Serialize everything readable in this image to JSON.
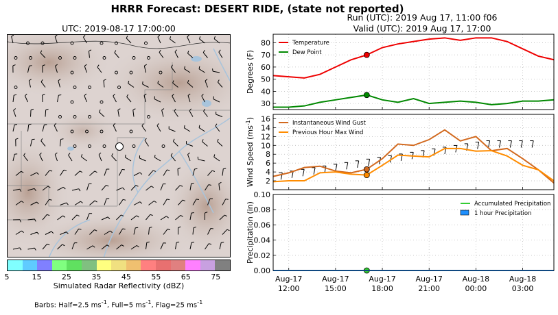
{
  "title": "HRRR Forecast: DESERT RIDE, (state not reported)",
  "run_line": "Run (UTC): 2019 Aug 17, 11:00 f06",
  "valid_line": "Valid (UTC): 2019 Aug 17, 17:00",
  "map": {
    "title": "UTC: 2019-08-17 17:00:00",
    "colorbar_label": "Simulated Radar Reflectivity (dBZ)",
    "colorbar_ticks": [
      "5",
      "15",
      "25",
      "35",
      "45",
      "55",
      "65",
      "75"
    ],
    "colorbar_colors": [
      "#80ffff",
      "#5fcbff",
      "#8080ff",
      "#80ff80",
      "#60e060",
      "#80c080",
      "#ffff80",
      "#f0e080",
      "#f0c070",
      "#ff8080",
      "#e87070",
      "#e08080",
      "#ff80ff",
      "#c8a0e0",
      "#808080"
    ],
    "barbs_note": "Barbs: Half=2.5 ms",
    "barbs_unit_sup": "-1",
    "barbs_full": ", Full=5 ms",
    "barbs_flag": ", Flag=25 ms"
  },
  "x_tick_labels": [
    {
      "day": "Aug-17",
      "time": "12:00"
    },
    {
      "day": "Aug-17",
      "time": "15:00"
    },
    {
      "day": "Aug-17",
      "time": "18:00"
    },
    {
      "day": "Aug-17",
      "time": "21:00"
    },
    {
      "day": "Aug-18",
      "time": "00:00"
    },
    {
      "day": "Aug-18",
      "time": "03:00"
    }
  ],
  "chart_data": [
    {
      "type": "line",
      "ylabel": "Degrees (F)",
      "ylim": [
        25,
        87
      ],
      "yticks": [
        30,
        40,
        50,
        60,
        70,
        80
      ],
      "grid": true,
      "legend_placement": "top-left",
      "x_hours_utc": [
        11,
        12,
        13,
        14,
        15,
        16,
        17,
        18,
        19,
        20,
        21,
        22,
        23,
        24,
        25,
        26,
        27,
        28,
        29
      ],
      "series": [
        {
          "name": "Temperature",
          "color": "#ee0000",
          "values": [
            53,
            52,
            51,
            54,
            60,
            66,
            70,
            76,
            79,
            81,
            83,
            84,
            82,
            84,
            84,
            81,
            75,
            69,
            66
          ]
        },
        {
          "name": "Dew Point",
          "color": "#008800",
          "values": [
            27,
            27,
            28,
            31,
            33,
            35,
            37,
            33,
            31,
            34,
            30,
            31,
            32,
            31,
            29,
            30,
            32,
            32,
            33
          ]
        }
      ],
      "marker_hour": 17
    },
    {
      "type": "line",
      "ylabel": "Wind Speed (ms",
      "ylabel_sup": "-1",
      "ylim": [
        0,
        17
      ],
      "yticks": [
        2,
        4,
        6,
        8,
        10,
        12,
        14,
        16
      ],
      "grid": true,
      "legend_placement": "top-left",
      "x_hours_utc": [
        11,
        12,
        13,
        14,
        15,
        16,
        17,
        18,
        19,
        20,
        21,
        22,
        23,
        24,
        25,
        26,
        27,
        28,
        29
      ],
      "series": [
        {
          "name": "Instantaneous Wind Gust",
          "color": "#d2691e",
          "values": [
            3.0,
            3.8,
            5.0,
            5.3,
            4.2,
            3.8,
            4.6,
            7.0,
            10.3,
            10.0,
            11.3,
            13.5,
            11.0,
            12.0,
            8.8,
            9.3,
            7.0,
            4.5,
            1.5
          ]
        },
        {
          "name": "Previous Hour Max Wind",
          "color": "#ff8c00",
          "values": [
            1.8,
            2.0,
            2.0,
            3.8,
            4.0,
            3.5,
            3.3,
            5.5,
            7.8,
            7.6,
            7.4,
            9.3,
            9.3,
            8.7,
            8.8,
            7.6,
            5.5,
            4.5,
            2.0
          ]
        }
      ],
      "marker_hour": 17
    },
    {
      "type": "bar",
      "ylabel": "Precipitation (in)",
      "ylim": [
        0,
        0.1
      ],
      "yticks": [
        0.0,
        0.02,
        0.04,
        0.06,
        0.08,
        0.1
      ],
      "ytick_labels": [
        "0.00",
        "0.02",
        "0.04",
        "0.06",
        "0.08",
        "0.10"
      ],
      "grid": true,
      "legend_placement": "top-right",
      "x_hours_utc": [
        11,
        12,
        13,
        14,
        15,
        16,
        17,
        18,
        19,
        20,
        21,
        22,
        23,
        24,
        25,
        26,
        27,
        28,
        29
      ],
      "series": [
        {
          "name": "Accumulated Precipitation",
          "color": "#33cc33",
          "kind": "line",
          "values": [
            0,
            0,
            0,
            0,
            0,
            0,
            0,
            0,
            0,
            0,
            0,
            0,
            0,
            0,
            0,
            0,
            0,
            0,
            0
          ]
        },
        {
          "name": "1 hour Precipitation",
          "color": "#1e90ff",
          "kind": "bar",
          "values": [
            0,
            0,
            0,
            0,
            0,
            0,
            0,
            0,
            0,
            0,
            0,
            0,
            0,
            0,
            0,
            0,
            0,
            0,
            0
          ]
        }
      ],
      "marker_hour": 17
    }
  ]
}
